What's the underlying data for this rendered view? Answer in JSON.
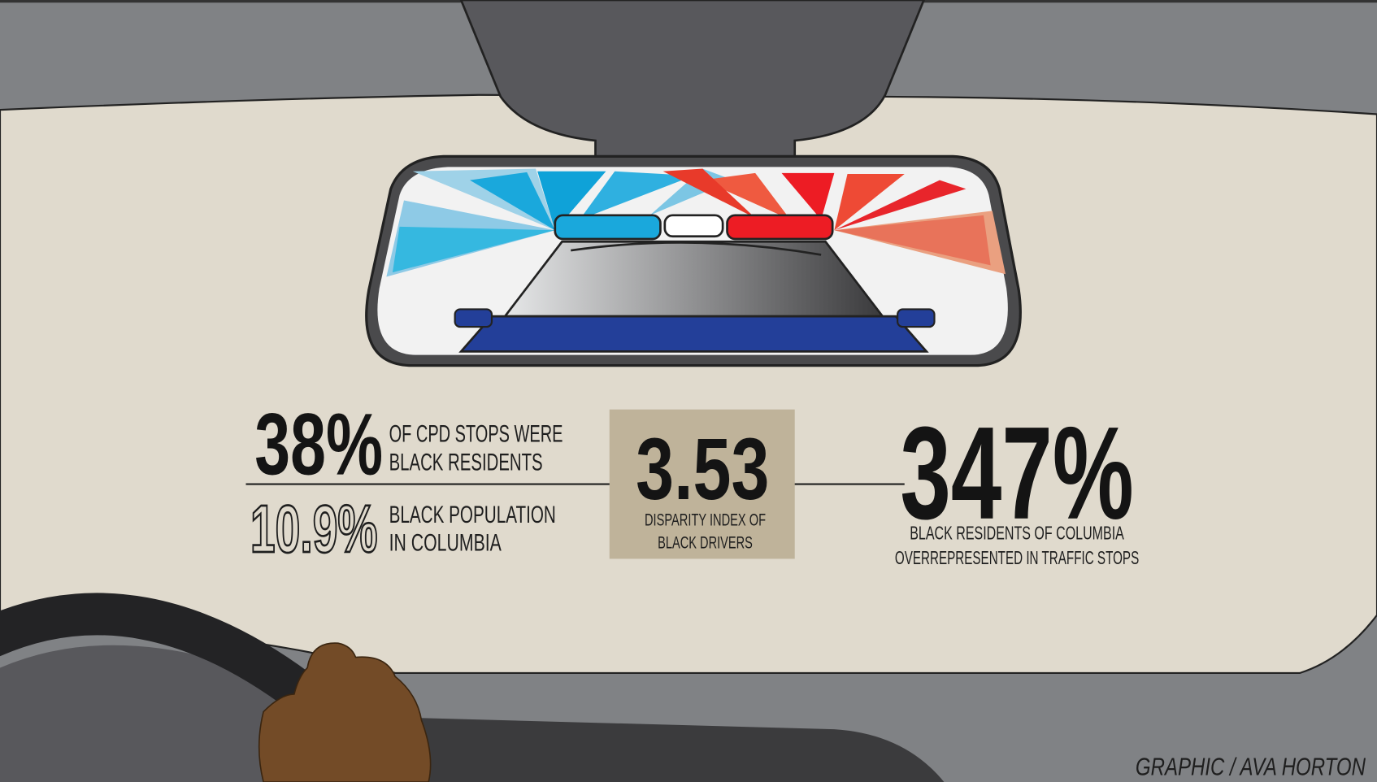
{
  "stats": [
    {
      "value": "38%",
      "label_lines": [
        "OF CPD STOPS WERE",
        "BLACK RESIDENTS"
      ]
    },
    {
      "value": "10.9%",
      "label_lines": [
        "BLACK POPULATION",
        "IN COLUMBIA"
      ]
    }
  ],
  "index": {
    "value": "3.53",
    "label_lines": [
      "DISPARITY INDEX OF",
      "BLACK DRIVERS"
    ]
  },
  "overrepresentation": {
    "value": "347%",
    "label_lines": [
      "BLACK  RESIDENTS  OF COLUMBIA",
      "OVERREPRESENTED IN TRAFFIC STOPS"
    ]
  },
  "credit": "GRAPHIC / AVA HORTON"
}
